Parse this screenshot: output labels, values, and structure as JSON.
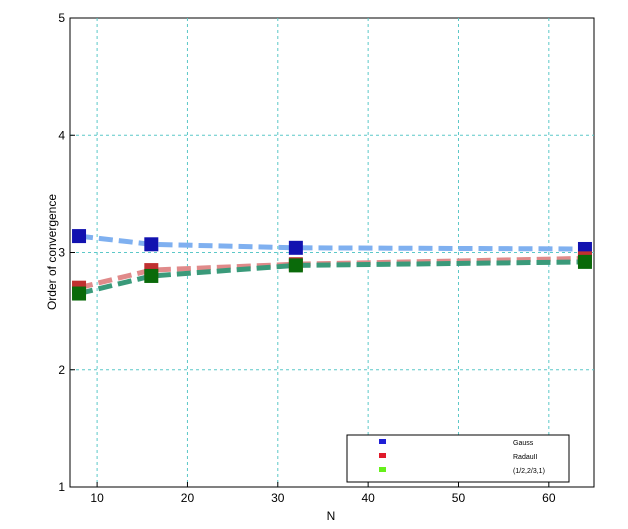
{
  "chart_data": {
    "type": "line",
    "title": "",
    "xlabel": "N",
    "ylabel": "Order of convergence",
    "xlim": [
      7,
      65
    ],
    "ylim": [
      1,
      5
    ],
    "xticks": [
      10,
      20,
      30,
      40,
      50,
      60
    ],
    "yticks": [
      1,
      2,
      3,
      4,
      5
    ],
    "grid": true,
    "grid_color": "#5bc8c8",
    "legend_position": "bottom-right",
    "x": [
      8,
      16,
      32,
      64
    ],
    "series": [
      {
        "name": "Gauss",
        "legend_color": "#1f1fd6",
        "line_color": "#7fb0f0",
        "marker_color": "#1212b0",
        "values": [
          3.14,
          3.07,
          3.04,
          3.03
        ]
      },
      {
        "name": "RadauII",
        "legend_color": "#e01a2a",
        "line_color": "#e08a8a",
        "marker_color": "#c03030",
        "values": [
          2.7,
          2.85,
          2.9,
          2.95
        ]
      },
      {
        "name": "(1/2,2/3,1)",
        "legend_color": "#66f01a",
        "line_color": "#3a9a7a",
        "marker_color": "#0a6a0a",
        "values": [
          2.65,
          2.8,
          2.89,
          2.92
        ]
      }
    ]
  }
}
